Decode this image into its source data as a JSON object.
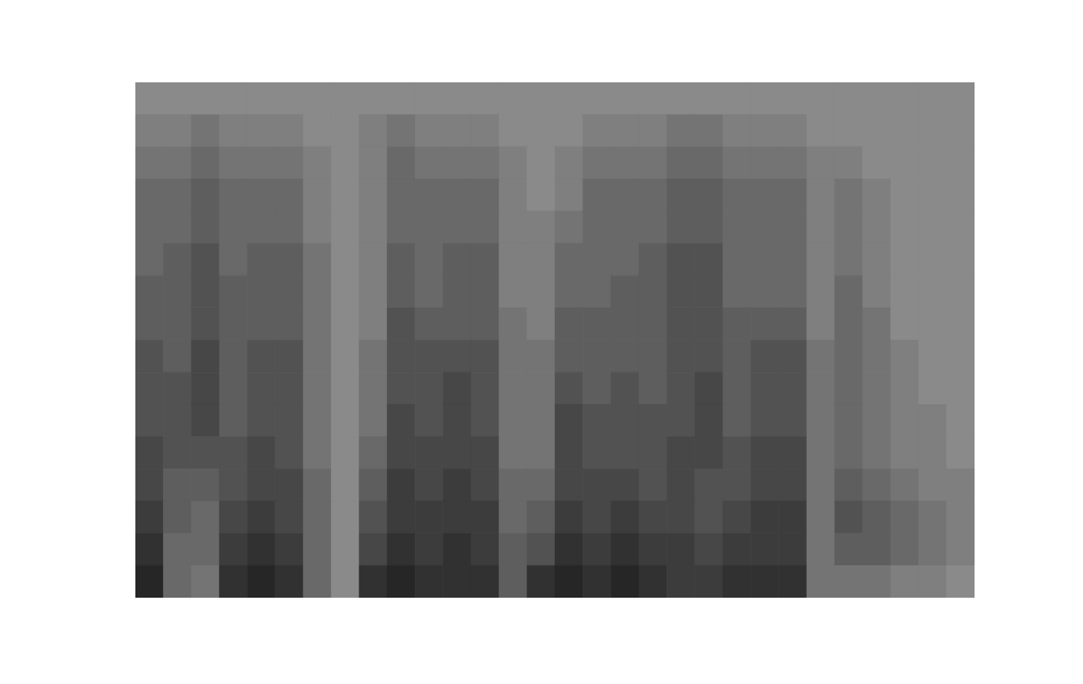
{
  "chart_data": {
    "type": "heatmap",
    "tick_labels": false,
    "color_range": [
      0,
      9
    ],
    "cells": [
      [
        0,
        0,
        0,
        0,
        0,
        0,
        0,
        0,
        0,
        0,
        0,
        0,
        0,
        0,
        0,
        0,
        0,
        0,
        0,
        0,
        0,
        0,
        0,
        0,
        0,
        0,
        0,
        0,
        0,
        0
      ],
      [
        1,
        1,
        2,
        1,
        1,
        1,
        0,
        0,
        1,
        2,
        1,
        1,
        1,
        0,
        0,
        0,
        1,
        1,
        1,
        2,
        2,
        1,
        1,
        1,
        0,
        0,
        0,
        0,
        0,
        0
      ],
      [
        2,
        2,
        3,
        2,
        2,
        2,
        1,
        0,
        1,
        3,
        2,
        2,
        2,
        1,
        0,
        1,
        2,
        2,
        2,
        3,
        3,
        2,
        2,
        2,
        1,
        1,
        0,
        0,
        0,
        0
      ],
      [
        3,
        3,
        4,
        3,
        3,
        3,
        1,
        0,
        1,
        3,
        3,
        3,
        3,
        1,
        0,
        1,
        3,
        3,
        3,
        4,
        4,
        3,
        3,
        3,
        1,
        2,
        1,
        0,
        0,
        0
      ],
      [
        3,
        3,
        4,
        3,
        3,
        3,
        1,
        0,
        1,
        3,
        3,
        3,
        3,
        1,
        1,
        2,
        3,
        3,
        3,
        4,
        4,
        3,
        3,
        3,
        1,
        2,
        1,
        0,
        0,
        0
      ],
      [
        3,
        4,
        5,
        3,
        4,
        4,
        2,
        0,
        1,
        4,
        3,
        4,
        4,
        1,
        1,
        3,
        3,
        3,
        4,
        5,
        5,
        3,
        3,
        3,
        1,
        2,
        1,
        0,
        0,
        0
      ],
      [
        4,
        4,
        5,
        4,
        4,
        4,
        2,
        0,
        1,
        4,
        3,
        4,
        4,
        1,
        1,
        3,
        3,
        4,
        4,
        5,
        5,
        3,
        3,
        3,
        1,
        3,
        1,
        0,
        0,
        0
      ],
      [
        4,
        4,
        5,
        4,
        4,
        4,
        2,
        0,
        1,
        5,
        4,
        4,
        4,
        2,
        1,
        4,
        4,
        4,
        4,
        5,
        5,
        4,
        4,
        4,
        1,
        3,
        2,
        0,
        0,
        0
      ],
      [
        5,
        4,
        6,
        4,
        5,
        5,
        2,
        0,
        2,
        5,
        5,
        5,
        5,
        2,
        2,
        4,
        4,
        4,
        4,
        5,
        5,
        4,
        5,
        5,
        2,
        3,
        2,
        1,
        0,
        0
      ],
      [
        5,
        5,
        6,
        4,
        5,
        5,
        2,
        0,
        2,
        5,
        5,
        6,
        5,
        2,
        2,
        5,
        4,
        5,
        4,
        5,
        6,
        4,
        5,
        5,
        2,
        3,
        2,
        1,
        0,
        0
      ],
      [
        5,
        5,
        6,
        4,
        5,
        5,
        2,
        0,
        2,
        6,
        5,
        6,
        5,
        2,
        2,
        6,
        5,
        5,
        5,
        5,
        6,
        4,
        5,
        5,
        2,
        3,
        2,
        1,
        1,
        0
      ],
      [
        6,
        5,
        5,
        5,
        6,
        5,
        2,
        0,
        3,
        6,
        6,
        6,
        6,
        2,
        2,
        6,
        5,
        5,
        5,
        6,
        6,
        5,
        6,
        6,
        2,
        3,
        2,
        1,
        1,
        0
      ],
      [
        6,
        4,
        4,
        5,
        6,
        6,
        3,
        0,
        4,
        7,
        6,
        7,
        6,
        3,
        3,
        6,
        6,
        6,
        5,
        6,
        5,
        5,
        6,
        6,
        2,
        4,
        3,
        2,
        1,
        1
      ],
      [
        7,
        4,
        3,
        6,
        7,
        6,
        3,
        0,
        5,
        7,
        7,
        7,
        7,
        3,
        4,
        7,
        6,
        7,
        6,
        6,
        5,
        6,
        7,
        7,
        2,
        5,
        4,
        3,
        2,
        1
      ],
      [
        8,
        3,
        3,
        7,
        8,
        7,
        3,
        0,
        6,
        8,
        7,
        8,
        7,
        4,
        5,
        8,
        7,
        8,
        7,
        7,
        6,
        7,
        7,
        7,
        2,
        4,
        4,
        3,
        2,
        1
      ],
      [
        9,
        3,
        2,
        8,
        9,
        8,
        3,
        0,
        8,
        9,
        8,
        8,
        8,
        4,
        8,
        9,
        8,
        9,
        8,
        7,
        7,
        8,
        8,
        8,
        2,
        2,
        2,
        1,
        1,
        0
      ]
    ]
  }
}
